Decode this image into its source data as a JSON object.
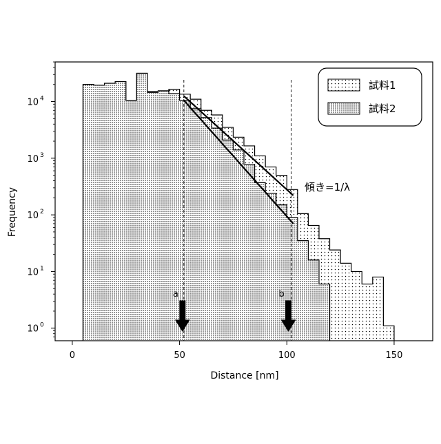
{
  "chart_data": {
    "type": "histogram",
    "xlabel": "Distance [nm]",
    "ylabel": "Frequency",
    "y_scale": "log",
    "xlim": [
      -8,
      168
    ],
    "ylim": [
      0.6,
      50000
    ],
    "x_ticks": [
      {
        "value": 0,
        "label": "0"
      },
      {
        "value": 50,
        "label": "50"
      },
      {
        "value": 100,
        "label": "100"
      },
      {
        "value": 150,
        "label": "150"
      }
    ],
    "y_ticks": [
      {
        "value": 1,
        "base": "10",
        "exp": "0"
      },
      {
        "value": 10,
        "base": "10",
        "exp": "1"
      },
      {
        "value": 100,
        "base": "10",
        "exp": "2"
      },
      {
        "value": 1000,
        "base": "10",
        "exp": "3"
      },
      {
        "value": 10000,
        "base": "10",
        "exp": "4"
      }
    ],
    "grid": false,
    "legend": {
      "position": "top-right",
      "entries": [
        {
          "label": "試料1",
          "series": "s1"
        },
        {
          "label": "試料2",
          "series": "s2"
        }
      ]
    },
    "series": [
      {
        "id": "s1",
        "name": "試料1",
        "pattern": "sparse-dots",
        "bins": [
          [
            5,
            10,
            20000
          ],
          [
            10,
            15,
            19500
          ],
          [
            15,
            20,
            21000
          ],
          [
            20,
            25,
            22500
          ],
          [
            25,
            30,
            10500
          ],
          [
            30,
            35,
            31500
          ],
          [
            35,
            40,
            15000
          ],
          [
            40,
            45,
            15000
          ],
          [
            45,
            50,
            16500
          ],
          [
            50,
            55,
            13500
          ],
          [
            55,
            60,
            11000
          ],
          [
            60,
            65,
            7000
          ],
          [
            65,
            70,
            5800
          ],
          [
            70,
            75,
            3500
          ],
          [
            75,
            80,
            2350
          ],
          [
            80,
            85,
            1650
          ],
          [
            85,
            90,
            1100
          ],
          [
            90,
            95,
            700
          ],
          [
            95,
            100,
            500
          ],
          [
            100,
            105,
            280
          ],
          [
            105,
            110,
            105
          ],
          [
            110,
            115,
            65
          ],
          [
            115,
            120,
            38
          ],
          [
            120,
            125,
            24
          ],
          [
            125,
            130,
            14
          ],
          [
            130,
            135,
            10
          ],
          [
            135,
            140,
            6
          ],
          [
            140,
            145,
            8
          ],
          [
            145,
            150,
            1.1
          ]
        ]
      },
      {
        "id": "s2",
        "name": "試料2",
        "pattern": "dense-dots",
        "bins": [
          [
            5,
            10,
            20000
          ],
          [
            10,
            15,
            19500
          ],
          [
            15,
            20,
            21000
          ],
          [
            20,
            25,
            22500
          ],
          [
            25,
            30,
            10500
          ],
          [
            30,
            35,
            31500
          ],
          [
            35,
            40,
            14500
          ],
          [
            40,
            45,
            15500
          ],
          [
            45,
            50,
            13800
          ],
          [
            50,
            55,
            10500
          ],
          [
            55,
            60,
            7500
          ],
          [
            60,
            65,
            5200
          ],
          [
            65,
            70,
            3400
          ],
          [
            70,
            75,
            2100
          ],
          [
            75,
            80,
            1400
          ],
          [
            80,
            85,
            780
          ],
          [
            85,
            90,
            370
          ],
          [
            90,
            95,
            240
          ],
          [
            95,
            100,
            150
          ],
          [
            100,
            105,
            90
          ],
          [
            105,
            110,
            35
          ],
          [
            110,
            115,
            16
          ],
          [
            115,
            120,
            6
          ]
        ]
      }
    ],
    "fit_lines": [
      {
        "series": "s1",
        "x": [
          52,
          103
        ],
        "y": [
          12500,
          220
        ]
      },
      {
        "series": "s2",
        "x": [
          52,
          103
        ],
        "y": [
          10500,
          70
        ]
      }
    ],
    "vlines": [
      {
        "x": 52,
        "label": "a"
      },
      {
        "x": 102,
        "label": "b"
      }
    ],
    "slope_annotation": "傾き=1/λ"
  }
}
